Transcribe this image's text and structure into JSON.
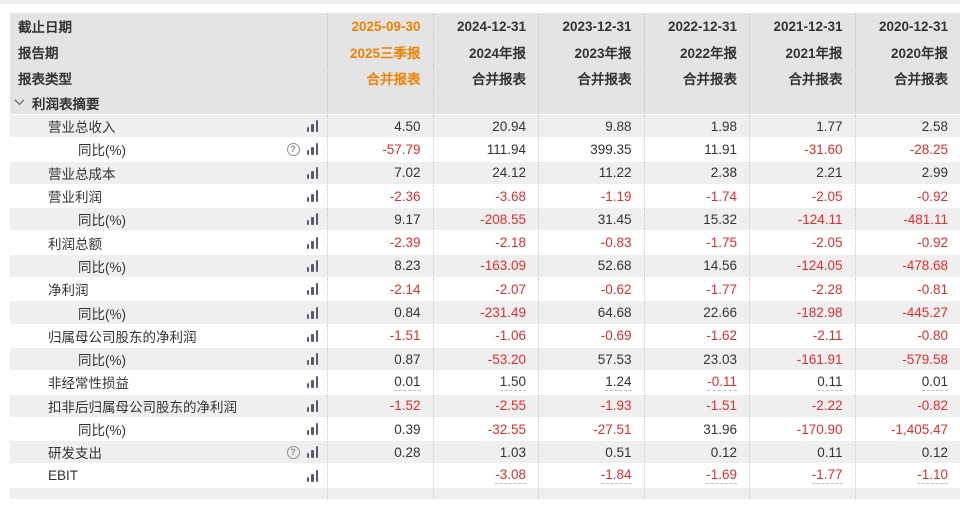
{
  "table": {
    "header_rows": [
      {
        "label": "截止日期",
        "values": [
          "2025-09-30",
          "2024-12-31",
          "2023-12-31",
          "2022-12-31",
          "2021-12-31",
          "2020-12-31"
        ]
      },
      {
        "label": "报告期",
        "values": [
          "2025三季报",
          "2024年报",
          "2023年报",
          "2022年报",
          "2021年报",
          "2020年报"
        ]
      },
      {
        "label": "报表类型",
        "values": [
          "合并报表",
          "合并报表",
          "合并报表",
          "合并报表",
          "合并报表",
          "合并报表"
        ]
      }
    ],
    "section_title": "利润表摘要",
    "rows": [
      {
        "label": "营业总收入",
        "indent": 1,
        "icons": [
          "chart"
        ],
        "underline": false,
        "values": [
          "4.50",
          "20.94",
          "9.88",
          "1.98",
          "1.77",
          "2.58"
        ]
      },
      {
        "label": "同比(%)",
        "indent": 2,
        "icons": [
          "help",
          "chart"
        ],
        "underline": false,
        "values": [
          "-57.79",
          "111.94",
          "399.35",
          "11.91",
          "-31.60",
          "-28.25"
        ]
      },
      {
        "label": "营业总成本",
        "indent": 1,
        "icons": [
          "chart"
        ],
        "underline": false,
        "values": [
          "7.02",
          "24.12",
          "11.22",
          "2.38",
          "2.21",
          "2.99"
        ]
      },
      {
        "label": "营业利润",
        "indent": 1,
        "icons": [
          "chart"
        ],
        "underline": false,
        "values": [
          "-2.36",
          "-3.68",
          "-1.19",
          "-1.74",
          "-2.05",
          "-0.92"
        ]
      },
      {
        "label": "同比(%)",
        "indent": 2,
        "icons": [
          "chart"
        ],
        "underline": false,
        "values": [
          "9.17",
          "-208.55",
          "31.45",
          "15.32",
          "-124.11",
          "-481.11"
        ]
      },
      {
        "label": "利润总额",
        "indent": 1,
        "icons": [
          "chart"
        ],
        "underline": false,
        "values": [
          "-2.39",
          "-2.18",
          "-0.83",
          "-1.75",
          "-2.05",
          "-0.92"
        ]
      },
      {
        "label": "同比(%)",
        "indent": 2,
        "icons": [
          "chart"
        ],
        "underline": false,
        "values": [
          "8.23",
          "-163.09",
          "52.68",
          "14.56",
          "-124.05",
          "-478.68"
        ]
      },
      {
        "label": "净利润",
        "indent": 1,
        "icons": [
          "chart"
        ],
        "underline": false,
        "values": [
          "-2.14",
          "-2.07",
          "-0.62",
          "-1.77",
          "-2.28",
          "-0.81"
        ]
      },
      {
        "label": "同比(%)",
        "indent": 2,
        "icons": [
          "chart"
        ],
        "underline": false,
        "values": [
          "0.84",
          "-231.49",
          "64.68",
          "22.66",
          "-182.98",
          "-445.27"
        ]
      },
      {
        "label": "归属母公司股东的净利润",
        "indent": 1,
        "icons": [
          "chart"
        ],
        "underline": false,
        "values": [
          "-1.51",
          "-1.06",
          "-0.69",
          "-1.62",
          "-2.11",
          "-0.80"
        ]
      },
      {
        "label": "同比(%)",
        "indent": 2,
        "icons": [
          "chart"
        ],
        "underline": false,
        "values": [
          "0.87",
          "-53.20",
          "57.53",
          "23.03",
          "-161.91",
          "-579.58"
        ]
      },
      {
        "label": "非经常性损益",
        "indent": 1,
        "icons": [
          "chart"
        ],
        "underline": true,
        "values": [
          "0.01",
          "1.50",
          "1.24",
          "-0.11",
          "0.11",
          "0.01"
        ]
      },
      {
        "label": "扣非后归属母公司股东的净利润",
        "indent": 1,
        "icons": [
          "chart"
        ],
        "underline": false,
        "values": [
          "-1.52",
          "-2.55",
          "-1.93",
          "-1.51",
          "-2.22",
          "-0.82"
        ]
      },
      {
        "label": "同比(%)",
        "indent": 2,
        "icons": [
          "chart"
        ],
        "underline": false,
        "values": [
          "0.39",
          "-32.55",
          "-27.51",
          "31.96",
          "-170.90",
          "-1,405.47"
        ]
      },
      {
        "label": "研发支出",
        "indent": 1,
        "icons": [
          "help",
          "chart"
        ],
        "underline": false,
        "values": [
          "0.28",
          "1.03",
          "0.51",
          "0.12",
          "0.11",
          "0.12"
        ]
      },
      {
        "label": "EBIT",
        "indent": 1,
        "icons": [
          "chart"
        ],
        "underline": true,
        "values": [
          "",
          "-3.08",
          "-1.84",
          "-1.69",
          "-1.77",
          "-1.10"
        ]
      }
    ]
  },
  "icons": {
    "help_glyph": "?",
    "chart_icon_name": "bar-chart-icon",
    "help_icon_name": "help-circle-icon",
    "chevron_icon_name": "chevron-down-icon"
  },
  "colors": {
    "accent_orange": "#ef8201",
    "negative_red": "#e12e2e",
    "text": "#333333",
    "header_bg": "#e4e4e4",
    "stripe_bg": "#efefef"
  }
}
